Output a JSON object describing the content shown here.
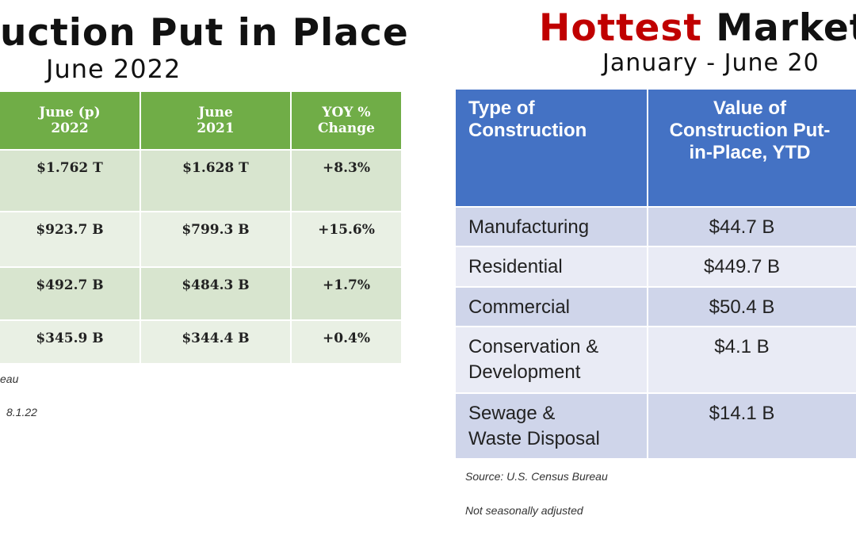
{
  "left": {
    "title": "uction Put in Place",
    "subtitle": "June 2022",
    "table": {
      "header": [
        "June (p)\n2022",
        "June\n2021",
        "YOY %\nChange"
      ],
      "rows": [
        [
          "$1.762 T",
          "$1.628 T",
          "+8.3%"
        ],
        [
          "$923.7 B",
          "$799.3 B",
          "+15.6%"
        ],
        [
          "$492.7 B",
          "$484.3 B",
          "+1.7%"
        ],
        [
          "$345.9 B",
          "$344.4 B",
          "+0.4%"
        ]
      ]
    },
    "notes": [
      "eau",
      "8.1.22"
    ]
  },
  "right": {
    "title_highlight": "Hottest",
    "title_rest": "Markets",
    "subtitle": "January - June 20",
    "table": {
      "header": [
        "Type of\nConstruction",
        "Value of\nConstruction Put-\nin-Place, YTD"
      ],
      "rows": [
        [
          "Manufacturing",
          "$44.7 B"
        ],
        [
          "Residential",
          "$449.7 B"
        ],
        [
          "Commercial",
          "$50.4 B"
        ],
        [
          "Conservation &\nDevelopment",
          "$4.1 B"
        ],
        [
          "Sewage &\nWaste Disposal",
          "$14.1 B"
        ]
      ]
    },
    "notes": [
      "Source: U.S. Census Bureau",
      "Not seasonally adjusted"
    ]
  }
}
